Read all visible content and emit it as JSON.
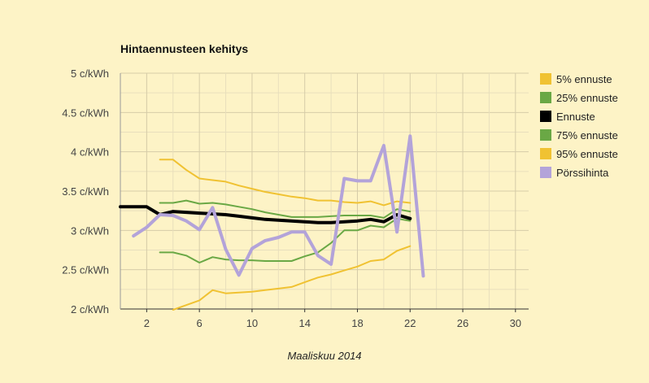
{
  "chart_data": {
    "type": "line",
    "title": "Hintaennusteen kehitys",
    "xlabel": "Maaliskuu 2014",
    "ylabel": "",
    "xlim": [
      0,
      31
    ],
    "ylim": [
      2,
      5
    ],
    "x_ticks": [
      2,
      6,
      10,
      14,
      18,
      22,
      26,
      30
    ],
    "y_ticks": [
      "2 c/kWh",
      "2.5 c/kWh",
      "3 c/kWh",
      "3.5 c/kWh",
      "4 c/kWh",
      "4.5 c/kWh",
      "5 c/kWh"
    ],
    "y_tick_values": [
      2,
      2.5,
      3,
      3.5,
      4,
      4.5,
      5
    ],
    "grid": true,
    "legend_position": "right",
    "background": "#fdf3c6",
    "series": [
      {
        "name": "5% ennuste",
        "color": "#f0c232",
        "width": 2,
        "x": [
          4,
          5,
          6,
          7,
          8,
          9,
          10,
          11,
          12,
          13,
          14,
          15,
          16,
          17,
          18,
          19,
          20,
          21,
          22
        ],
        "values": [
          1.99,
          2.05,
          2.11,
          2.24,
          2.2,
          2.21,
          2.22,
          2.24,
          2.26,
          2.28,
          2.34,
          2.4,
          2.44,
          2.49,
          2.54,
          2.61,
          2.63,
          2.74,
          2.8
        ]
      },
      {
        "name": "25% ennuste",
        "color": "#6aa845",
        "width": 2,
        "x": [
          3,
          4,
          5,
          6,
          7,
          8,
          9,
          10,
          11,
          12,
          13,
          14,
          15,
          16,
          17,
          18,
          19,
          20,
          21,
          22
        ],
        "values": [
          2.72,
          2.72,
          2.68,
          2.59,
          2.66,
          2.63,
          2.62,
          2.62,
          2.61,
          2.61,
          2.61,
          2.67,
          2.72,
          2.84,
          3.0,
          3.0,
          3.06,
          3.04,
          3.15,
          3.12
        ]
      },
      {
        "name": "Ennuste",
        "color": "#000000",
        "width": 4,
        "x": [
          0,
          1,
          2,
          3,
          4,
          5,
          6,
          7,
          8,
          9,
          10,
          11,
          12,
          13,
          14,
          15,
          16,
          17,
          18,
          19,
          20,
          21,
          22
        ],
        "values": [
          3.3,
          3.3,
          3.3,
          3.2,
          3.24,
          3.23,
          3.22,
          3.21,
          3.2,
          3.18,
          3.16,
          3.14,
          3.13,
          3.12,
          3.11,
          3.1,
          3.1,
          3.11,
          3.12,
          3.14,
          3.11,
          3.2,
          3.15
        ]
      },
      {
        "name": "75% ennuste",
        "color": "#6aa845",
        "width": 2,
        "x": [
          3,
          4,
          5,
          6,
          7,
          8,
          9,
          10,
          11,
          12,
          13,
          14,
          15,
          16,
          17,
          18,
          19,
          20,
          21,
          22
        ],
        "values": [
          3.35,
          3.35,
          3.38,
          3.34,
          3.35,
          3.33,
          3.3,
          3.27,
          3.23,
          3.2,
          3.17,
          3.17,
          3.17,
          3.18,
          3.19,
          3.19,
          3.19,
          3.16,
          3.27,
          3.24
        ]
      },
      {
        "name": "95% ennuste",
        "color": "#f0c232",
        "width": 2,
        "x": [
          3,
          4,
          5,
          6,
          7,
          8,
          9,
          10,
          11,
          12,
          13,
          14,
          15,
          16,
          17,
          18,
          19,
          20,
          21,
          22
        ],
        "values": [
          3.9,
          3.9,
          3.77,
          3.66,
          3.64,
          3.62,
          3.57,
          3.53,
          3.49,
          3.46,
          3.43,
          3.41,
          3.38,
          3.38,
          3.36,
          3.35,
          3.37,
          3.32,
          3.37,
          3.35
        ]
      },
      {
        "name": "Pörssihinta",
        "color": "#b3a3d9",
        "width": 4,
        "x": [
          1,
          2,
          3,
          4,
          5,
          6,
          7,
          8,
          9,
          10,
          11,
          12,
          13,
          14,
          15,
          16,
          17,
          18,
          19,
          20,
          21,
          22,
          23
        ],
        "values": [
          2.93,
          3.04,
          3.2,
          3.19,
          3.12,
          3.01,
          3.29,
          2.76,
          2.43,
          2.77,
          2.87,
          2.91,
          2.98,
          2.98,
          2.68,
          2.57,
          3.66,
          3.63,
          3.63,
          4.08,
          2.98,
          4.2,
          2.42
        ]
      }
    ]
  }
}
